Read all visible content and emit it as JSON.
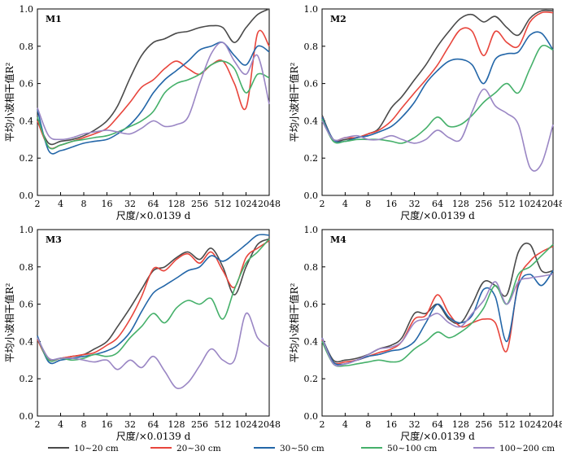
{
  "legend": [
    {
      "name": "10~20 cm",
      "color": "#4a4a4a"
    },
    {
      "name": "20~30 cm",
      "color": "#e8453c"
    },
    {
      "name": "30~50 cm",
      "color": "#2366a8"
    },
    {
      "name": "50~100 cm",
      "color": "#45b06a"
    },
    {
      "name": "100~200 cm",
      "color": "#9a86c4"
    }
  ],
  "chart_data": [
    {
      "type": "line",
      "panel": "M1",
      "xlabel": "尺度/×0.0139 d",
      "ylabel": "平均小波相干值R²",
      "x_scale": "log2",
      "xlim": [
        2,
        2048
      ],
      "ylim": [
        0,
        1.0
      ],
      "xticks": [
        2,
        4,
        8,
        16,
        32,
        64,
        128,
        256,
        512,
        1024,
        2048
      ],
      "yticks": [
        0,
        0.2,
        0.4,
        0.6,
        0.8,
        1.0
      ],
      "x": [
        2,
        2.8,
        4,
        5.7,
        8,
        11,
        16,
        22,
        32,
        45,
        64,
        90,
        128,
        181,
        256,
        362,
        512,
        724,
        1024,
        1448,
        2048
      ],
      "series": [
        {
          "name": "10~20 cm",
          "values": [
            0.4,
            0.28,
            0.29,
            0.3,
            0.32,
            0.35,
            0.4,
            0.48,
            0.63,
            0.75,
            0.82,
            0.84,
            0.87,
            0.88,
            0.9,
            0.91,
            0.9,
            0.82,
            0.9,
            0.97,
            1.0
          ]
        },
        {
          "name": "20~30 cm",
          "values": [
            0.4,
            0.26,
            0.27,
            0.29,
            0.31,
            0.33,
            0.36,
            0.42,
            0.5,
            0.58,
            0.62,
            0.68,
            0.72,
            0.68,
            0.65,
            0.7,
            0.72,
            0.6,
            0.47,
            0.87,
            0.8
          ]
        },
        {
          "name": "30~50 cm",
          "values": [
            0.46,
            0.24,
            0.24,
            0.26,
            0.28,
            0.29,
            0.3,
            0.33,
            0.38,
            0.45,
            0.55,
            0.62,
            0.67,
            0.72,
            0.78,
            0.8,
            0.82,
            0.75,
            0.7,
            0.8,
            0.77
          ]
        },
        {
          "name": "50~100 cm",
          "values": [
            0.42,
            0.26,
            0.27,
            0.29,
            0.3,
            0.31,
            0.32,
            0.34,
            0.37,
            0.4,
            0.45,
            0.55,
            0.6,
            0.62,
            0.65,
            0.7,
            0.72,
            0.68,
            0.55,
            0.65,
            0.63
          ]
        },
        {
          "name": "100~200 cm",
          "values": [
            0.47,
            0.32,
            0.3,
            0.31,
            0.33,
            0.34,
            0.35,
            0.34,
            0.33,
            0.36,
            0.4,
            0.37,
            0.38,
            0.42,
            0.6,
            0.76,
            0.82,
            0.72,
            0.65,
            0.75,
            0.49
          ]
        }
      ]
    },
    {
      "type": "line",
      "panel": "M2",
      "xlabel": "尺度/×0.0139 d",
      "ylabel": "平均小波相干值R²",
      "x_scale": "log2",
      "xlim": [
        2,
        2048
      ],
      "ylim": [
        0,
        1.0
      ],
      "xticks": [
        2,
        4,
        8,
        16,
        32,
        64,
        128,
        256,
        512,
        1024,
        2048
      ],
      "yticks": [
        0,
        0.2,
        0.4,
        0.6,
        0.8,
        1.0
      ],
      "x": [
        2,
        2.8,
        4,
        5.7,
        8,
        11,
        16,
        22,
        32,
        45,
        64,
        90,
        128,
        181,
        256,
        362,
        512,
        724,
        1024,
        1448,
        2048
      ],
      "series": [
        {
          "name": "10~20 cm",
          "values": [
            0.43,
            0.3,
            0.3,
            0.31,
            0.33,
            0.36,
            0.47,
            0.53,
            0.62,
            0.7,
            0.8,
            0.88,
            0.95,
            0.97,
            0.93,
            0.96,
            0.9,
            0.86,
            0.95,
            0.99,
            0.99
          ]
        },
        {
          "name": "20~30 cm",
          "values": [
            0.42,
            0.3,
            0.31,
            0.31,
            0.33,
            0.35,
            0.4,
            0.47,
            0.55,
            0.62,
            0.7,
            0.8,
            0.89,
            0.88,
            0.75,
            0.88,
            0.82,
            0.8,
            0.93,
            0.98,
            0.98
          ]
        },
        {
          "name": "30~50 cm",
          "values": [
            0.42,
            0.3,
            0.29,
            0.31,
            0.32,
            0.34,
            0.37,
            0.42,
            0.5,
            0.6,
            0.67,
            0.72,
            0.73,
            0.7,
            0.6,
            0.73,
            0.76,
            0.77,
            0.86,
            0.87,
            0.78
          ]
        },
        {
          "name": "50~100 cm",
          "values": [
            0.41,
            0.29,
            0.29,
            0.3,
            0.3,
            0.3,
            0.29,
            0.28,
            0.31,
            0.36,
            0.42,
            0.37,
            0.38,
            0.43,
            0.5,
            0.55,
            0.6,
            0.55,
            0.68,
            0.8,
            0.78
          ]
        },
        {
          "name": "100~200 cm",
          "values": [
            0.4,
            0.3,
            0.31,
            0.32,
            0.3,
            0.3,
            0.32,
            0.3,
            0.28,
            0.3,
            0.35,
            0.31,
            0.3,
            0.45,
            0.57,
            0.48,
            0.44,
            0.38,
            0.15,
            0.17,
            0.38
          ]
        }
      ]
    },
    {
      "type": "line",
      "panel": "M3",
      "xlabel": "尺度/×0.0139 d",
      "ylabel": "平均小波相干值R²",
      "x_scale": "log2",
      "xlim": [
        2,
        2048
      ],
      "ylim": [
        0,
        1.0
      ],
      "xticks": [
        2,
        4,
        8,
        16,
        32,
        64,
        128,
        256,
        512,
        1024,
        2048
      ],
      "yticks": [
        0,
        0.2,
        0.4,
        0.6,
        0.8,
        1.0
      ],
      "x": [
        2,
        2.8,
        4,
        5.7,
        8,
        11,
        16,
        22,
        32,
        45,
        64,
        90,
        128,
        181,
        256,
        362,
        512,
        724,
        1024,
        1448,
        2048
      ],
      "series": [
        {
          "name": "10~20 cm",
          "values": [
            0.42,
            0.31,
            0.31,
            0.32,
            0.33,
            0.36,
            0.4,
            0.48,
            0.58,
            0.68,
            0.78,
            0.8,
            0.85,
            0.88,
            0.84,
            0.9,
            0.8,
            0.65,
            0.8,
            0.92,
            0.95
          ]
        },
        {
          "name": "20~30 cm",
          "values": [
            0.41,
            0.3,
            0.31,
            0.32,
            0.33,
            0.34,
            0.38,
            0.42,
            0.52,
            0.64,
            0.79,
            0.78,
            0.84,
            0.87,
            0.82,
            0.88,
            0.78,
            0.69,
            0.85,
            0.9,
            0.94
          ]
        },
        {
          "name": "30~50 cm",
          "values": [
            0.43,
            0.29,
            0.3,
            0.31,
            0.32,
            0.33,
            0.35,
            0.38,
            0.45,
            0.56,
            0.66,
            0.7,
            0.74,
            0.78,
            0.8,
            0.86,
            0.83,
            0.87,
            0.92,
            0.97,
            0.97
          ]
        },
        {
          "name": "50~100 cm",
          "values": [
            0.42,
            0.3,
            0.31,
            0.3,
            0.31,
            0.33,
            0.32,
            0.34,
            0.42,
            0.48,
            0.55,
            0.5,
            0.58,
            0.62,
            0.6,
            0.63,
            0.52,
            0.68,
            0.82,
            0.88,
            0.95
          ]
        },
        {
          "name": "100~200 cm",
          "values": [
            0.42,
            0.31,
            0.31,
            0.31,
            0.3,
            0.29,
            0.3,
            0.25,
            0.3,
            0.26,
            0.32,
            0.24,
            0.15,
            0.18,
            0.27,
            0.36,
            0.3,
            0.3,
            0.55,
            0.42,
            0.37
          ]
        }
      ]
    },
    {
      "type": "line",
      "panel": "M4",
      "xlabel": "尺度/×0.0139 d",
      "ylabel": "平均小波相干值R²",
      "x_scale": "log2",
      "xlim": [
        2,
        2048
      ],
      "ylim": [
        0,
        1.0
      ],
      "xticks": [
        2,
        4,
        8,
        16,
        32,
        64,
        128,
        256,
        512,
        1024,
        2048
      ],
      "yticks": [
        0,
        0.2,
        0.4,
        0.6,
        0.8,
        1.0
      ],
      "x": [
        2,
        2.8,
        4,
        5.7,
        8,
        11,
        16,
        22,
        32,
        45,
        64,
        90,
        128,
        181,
        256,
        362,
        512,
        724,
        1024,
        1448,
        2048
      ],
      "series": [
        {
          "name": "10~20 cm",
          "values": [
            0.42,
            0.3,
            0.3,
            0.31,
            0.33,
            0.36,
            0.38,
            0.42,
            0.55,
            0.55,
            0.6,
            0.52,
            0.5,
            0.6,
            0.72,
            0.7,
            0.65,
            0.88,
            0.92,
            0.78,
            0.78
          ]
        },
        {
          "name": "20~30 cm",
          "values": [
            0.41,
            0.29,
            0.29,
            0.3,
            0.32,
            0.34,
            0.36,
            0.4,
            0.52,
            0.54,
            0.65,
            0.55,
            0.48,
            0.5,
            0.52,
            0.5,
            0.35,
            0.72,
            0.83,
            0.88,
            0.91
          ]
        },
        {
          "name": "30~50 cm",
          "values": [
            0.42,
            0.29,
            0.28,
            0.3,
            0.32,
            0.33,
            0.35,
            0.36,
            0.4,
            0.5,
            0.6,
            0.53,
            0.5,
            0.54,
            0.68,
            0.64,
            0.4,
            0.7,
            0.76,
            0.7,
            0.78
          ]
        },
        {
          "name": "50~100 cm",
          "values": [
            0.4,
            0.28,
            0.27,
            0.28,
            0.29,
            0.3,
            0.29,
            0.3,
            0.36,
            0.4,
            0.45,
            0.42,
            0.45,
            0.5,
            0.58,
            0.7,
            0.6,
            0.76,
            0.8,
            0.86,
            0.92
          ]
        },
        {
          "name": "100~200 cm",
          "values": [
            0.42,
            0.28,
            0.28,
            0.3,
            0.33,
            0.36,
            0.37,
            0.4,
            0.5,
            0.52,
            0.55,
            0.5,
            0.48,
            0.55,
            0.62,
            0.72,
            0.6,
            0.72,
            0.74,
            0.75,
            0.76
          ]
        }
      ]
    }
  ]
}
